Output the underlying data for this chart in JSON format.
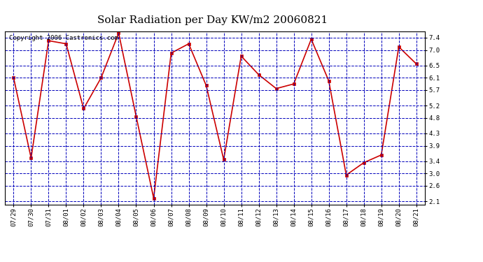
{
  "title": "Solar Radiation per Day KW/m2 20060821",
  "copyright": "Copyright 2006 Castronics.com",
  "dates": [
    "07/29",
    "07/30",
    "07/31",
    "08/01",
    "08/02",
    "08/03",
    "08/04",
    "08/05",
    "08/06",
    "08/07",
    "08/08",
    "08/09",
    "08/10",
    "08/11",
    "08/12",
    "08/13",
    "08/14",
    "08/15",
    "08/16",
    "08/17",
    "08/18",
    "08/19",
    "08/20",
    "08/21"
  ],
  "values": [
    6.1,
    3.5,
    7.3,
    7.2,
    5.1,
    6.1,
    7.55,
    4.85,
    2.2,
    6.9,
    7.2,
    5.85,
    3.45,
    6.8,
    6.2,
    5.75,
    5.9,
    7.35,
    6.0,
    2.95,
    3.35,
    3.6,
    7.1,
    6.55
  ],
  "yticks": [
    2.1,
    2.6,
    3.0,
    3.4,
    3.9,
    4.3,
    4.8,
    5.2,
    5.7,
    6.1,
    6.5,
    7.0,
    7.4
  ],
  "ylim": [
    2.0,
    7.6
  ],
  "line_color": "#cc0000",
  "marker_color": "#cc0000",
  "bg_color": "#ffffff",
  "plot_bg_color": "#ffffff",
  "grid_color": "#0000bb",
  "title_fontsize": 11,
  "tick_fontsize": 6.5,
  "copyright_fontsize": 6.5
}
